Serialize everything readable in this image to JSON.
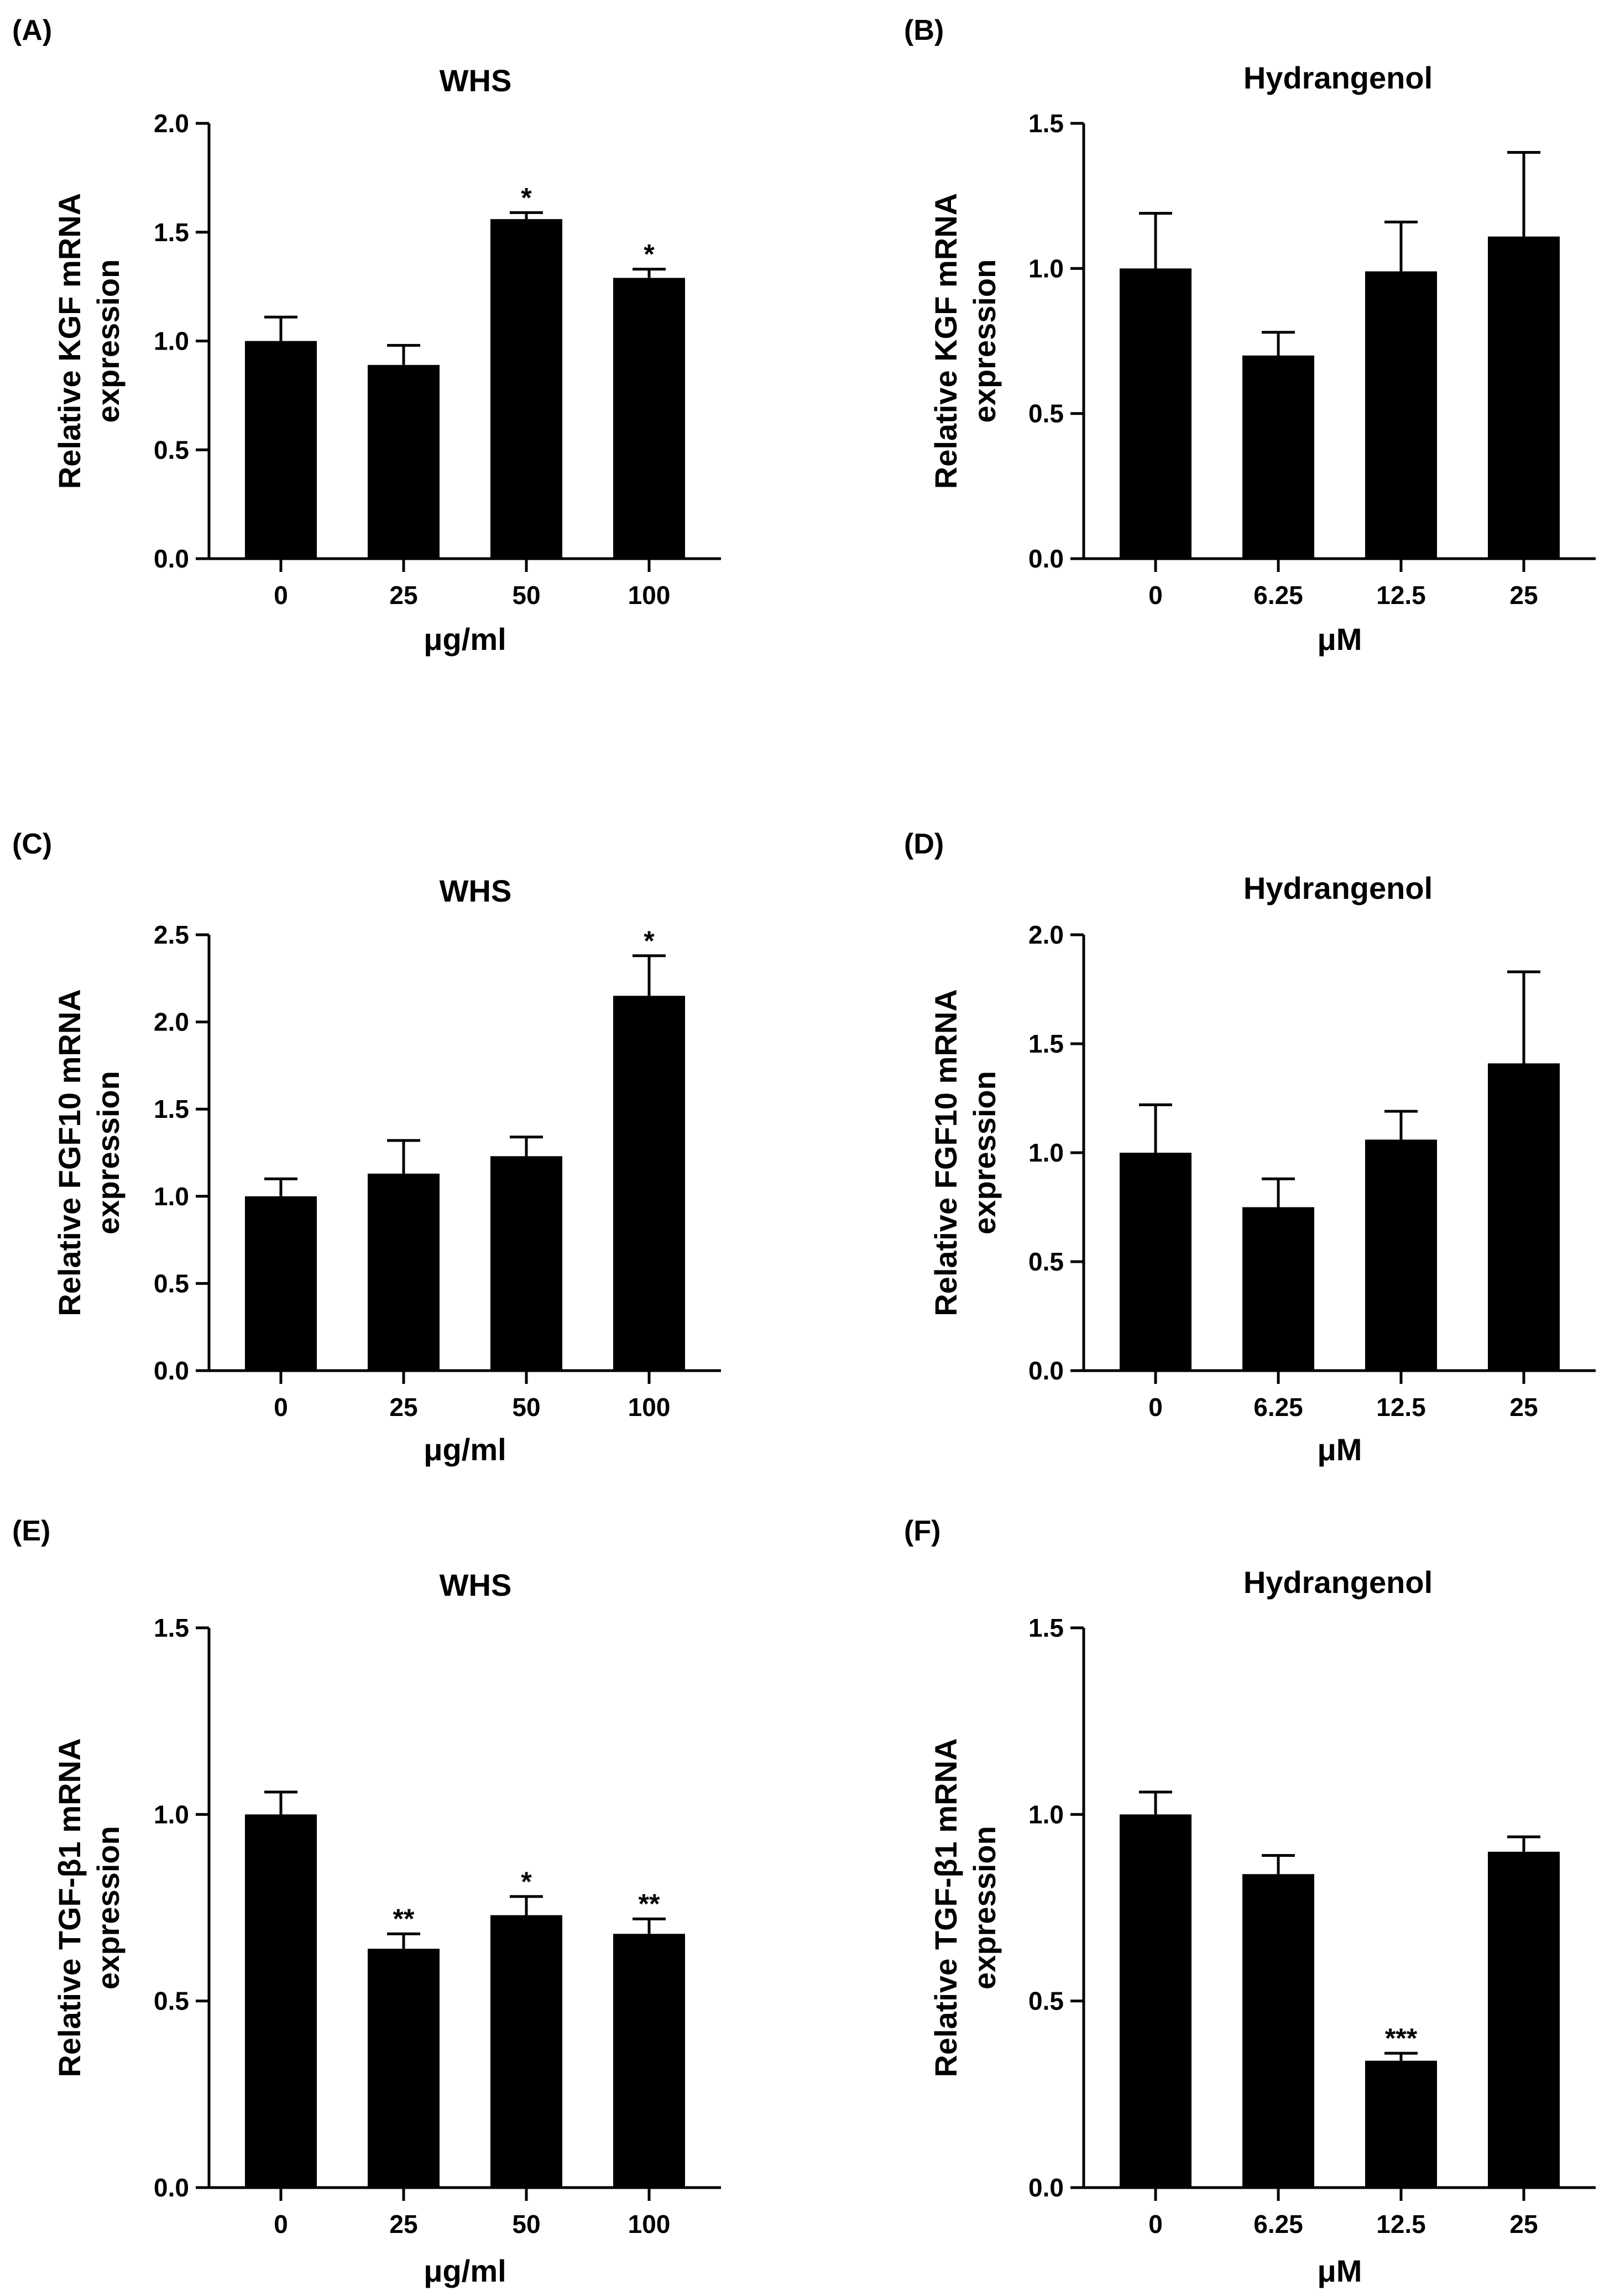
{
  "figure": {
    "panels": [
      {
        "letter": "(A)",
        "title": "WHS",
        "ylabel_line1": "Relative KGF mRNA",
        "ylabel_line2": "expression",
        "xlabel": "μg/ml"
      },
      {
        "letter": "(B)",
        "title": "Hydrangenol",
        "ylabel_line1": "Relative KGF mRNA",
        "ylabel_line2": "expression",
        "xlabel": "μM"
      },
      {
        "letter": "(C)",
        "title": "WHS",
        "ylabel_line1": "Relative FGF10 mRNA",
        "ylabel_line2": "expression",
        "xlabel": "μg/ml"
      },
      {
        "letter": "(D)",
        "title": "Hydrangenol",
        "ylabel_line1": "Relative FGF10 mRNA",
        "ylabel_line2": "expression",
        "xlabel": "μM"
      },
      {
        "letter": "(E)",
        "title": "WHS",
        "ylabel_line1": "Relative TGF-β1 mRNA",
        "ylabel_line2": "expression",
        "xlabel": "μg/ml"
      },
      {
        "letter": "(F)",
        "title": "Hydrangenol",
        "ylabel_line1": "Relative TGF-β1 mRNA",
        "ylabel_line2": "expression",
        "xlabel": "μM"
      }
    ]
  },
  "chart_data": [
    {
      "panel": "(A)",
      "type": "bar",
      "title": "WHS",
      "xlabel": "μg/ml",
      "ylabel": "Relative KGF mRNA expression",
      "categories": [
        "0",
        "25",
        "50",
        "100"
      ],
      "values": [
        1.0,
        0.89,
        1.56,
        1.29
      ],
      "errors": [
        0.11,
        0.09,
        0.03,
        0.04
      ],
      "significance": [
        "",
        "",
        "*",
        "*"
      ],
      "ylim": [
        0,
        2.0
      ],
      "yticks": [
        "0.0",
        "0.5",
        "1.0",
        "1.5",
        "2.0"
      ]
    },
    {
      "panel": "(B)",
      "type": "bar",
      "title": "Hydrangenol",
      "xlabel": "μM",
      "ylabel": "Relative KGF mRNA expression",
      "categories": [
        "0",
        "6.25",
        "12.5",
        "25"
      ],
      "values": [
        1.0,
        0.7,
        0.99,
        1.11
      ],
      "errors": [
        0.19,
        0.08,
        0.17,
        0.29
      ],
      "significance": [
        "",
        "",
        "",
        ""
      ],
      "ylim": [
        0,
        1.5
      ],
      "yticks": [
        "0.0",
        "0.5",
        "1.0",
        "1.5"
      ]
    },
    {
      "panel": "(C)",
      "type": "bar",
      "title": "WHS",
      "xlabel": "μg/ml",
      "ylabel": "Relative FGF10 mRNA expression",
      "categories": [
        "0",
        "25",
        "50",
        "100"
      ],
      "values": [
        1.0,
        1.13,
        1.23,
        2.15
      ],
      "errors": [
        0.1,
        0.19,
        0.11,
        0.23
      ],
      "significance": [
        "",
        "",
        "",
        "*"
      ],
      "ylim": [
        0,
        2.5
      ],
      "yticks": [
        "0.0",
        "0.5",
        "1.0",
        "1.5",
        "2.0",
        "2.5"
      ]
    },
    {
      "panel": "(D)",
      "type": "bar",
      "title": "Hydrangenol",
      "xlabel": "μM",
      "ylabel": "Relative FGF10 mRNA expression",
      "categories": [
        "0",
        "6.25",
        "12.5",
        "25"
      ],
      "values": [
        1.0,
        0.75,
        1.06,
        1.41
      ],
      "errors": [
        0.22,
        0.13,
        0.13,
        0.42
      ],
      "significance": [
        "",
        "",
        "",
        ""
      ],
      "ylim": [
        0,
        2.0
      ],
      "yticks": [
        "0.0",
        "0.5",
        "1.0",
        "1.5",
        "2.0"
      ]
    },
    {
      "panel": "(E)",
      "type": "bar",
      "title": "WHS",
      "xlabel": "μg/ml",
      "ylabel": "Relative TGF-β1 mRNA expression",
      "categories": [
        "0",
        "25",
        "50",
        "100"
      ],
      "values": [
        1.0,
        0.64,
        0.73,
        0.68
      ],
      "errors": [
        0.06,
        0.04,
        0.05,
        0.04
      ],
      "significance": [
        "",
        "**",
        "*",
        "**"
      ],
      "ylim": [
        0,
        1.5
      ],
      "yticks": [
        "0.0",
        "0.5",
        "1.0",
        "1.5"
      ]
    },
    {
      "panel": "(F)",
      "type": "bar",
      "title": "Hydrangenol",
      "xlabel": "μM",
      "ylabel": "Relative TGF-β1 mRNA expression",
      "categories": [
        "0",
        "6.25",
        "12.5",
        "25"
      ],
      "values": [
        1.0,
        0.84,
        0.34,
        0.9
      ],
      "errors": [
        0.06,
        0.05,
        0.02,
        0.04
      ],
      "significance": [
        "",
        "",
        "***",
        ""
      ],
      "ylim": [
        0,
        1.5
      ],
      "yticks": [
        "0.0",
        "0.5",
        "1.0",
        "1.5"
      ]
    }
  ]
}
